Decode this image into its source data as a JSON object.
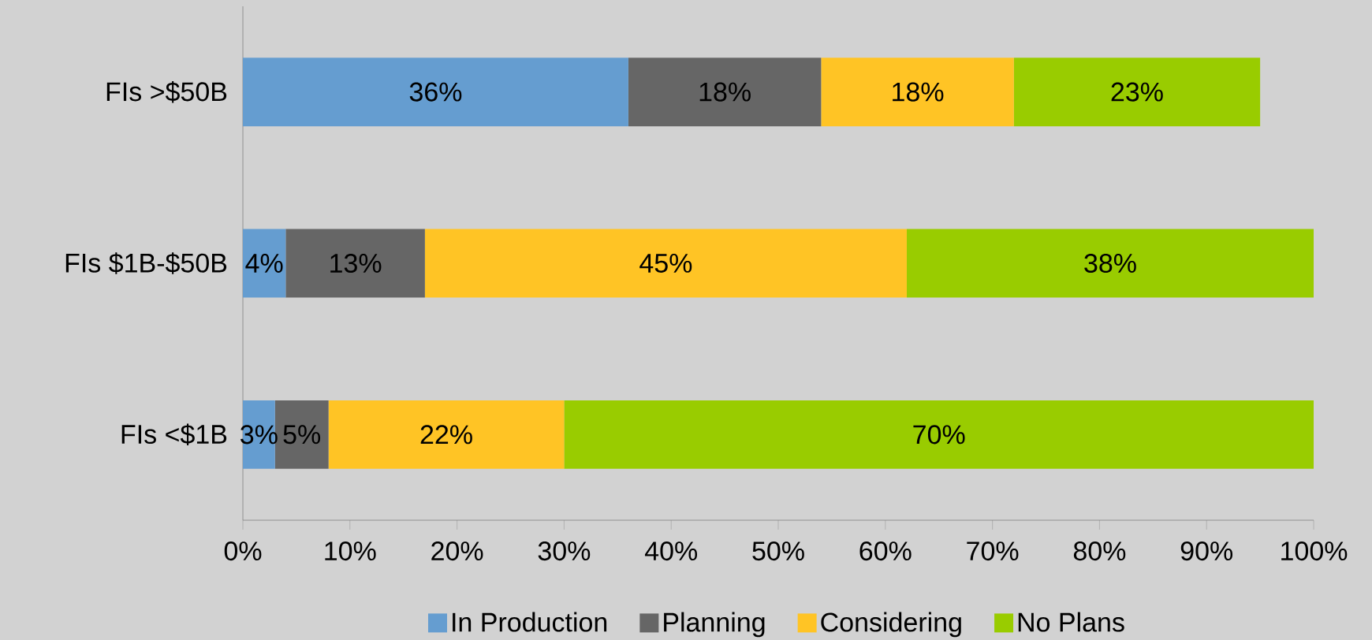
{
  "chart_data": {
    "type": "bar",
    "orientation": "horizontal",
    "stacked": true,
    "categories": [
      "FIs >$50B",
      "FIs $1B-$50B",
      "FIs <$1B"
    ],
    "series": [
      {
        "name": "In Production",
        "color": "#659dd0",
        "values": [
          36,
          4,
          3
        ],
        "value_labels": [
          "36%",
          "4%",
          "3%"
        ]
      },
      {
        "name": "Planning",
        "color": "#666666",
        "values": [
          18,
          13,
          5
        ],
        "value_labels": [
          "18%",
          "13%",
          "5%"
        ]
      },
      {
        "name": "Considering",
        "color": "#ffc425",
        "values": [
          18,
          45,
          22
        ],
        "value_labels": [
          "18%",
          "45%",
          "22%"
        ]
      },
      {
        "name": "No Plans",
        "color": "#99cc00",
        "values": [
          23,
          38,
          70
        ],
        "value_labels": [
          "23%",
          "38%",
          "70%"
        ]
      }
    ],
    "xlim": [
      0,
      100
    ],
    "xticks": [
      {
        "value": 0,
        "label": "0%"
      },
      {
        "value": 10,
        "label": "10%"
      },
      {
        "value": 20,
        "label": "20%"
      },
      {
        "value": 30,
        "label": "30%"
      },
      {
        "value": 40,
        "label": "40%"
      },
      {
        "value": 50,
        "label": "50%"
      },
      {
        "value": 60,
        "label": "60%"
      },
      {
        "value": 70,
        "label": "70%"
      },
      {
        "value": 80,
        "label": "80%"
      },
      {
        "value": 90,
        "label": "90%"
      },
      {
        "value": 100,
        "label": "100%"
      }
    ],
    "legend": "bottom"
  }
}
